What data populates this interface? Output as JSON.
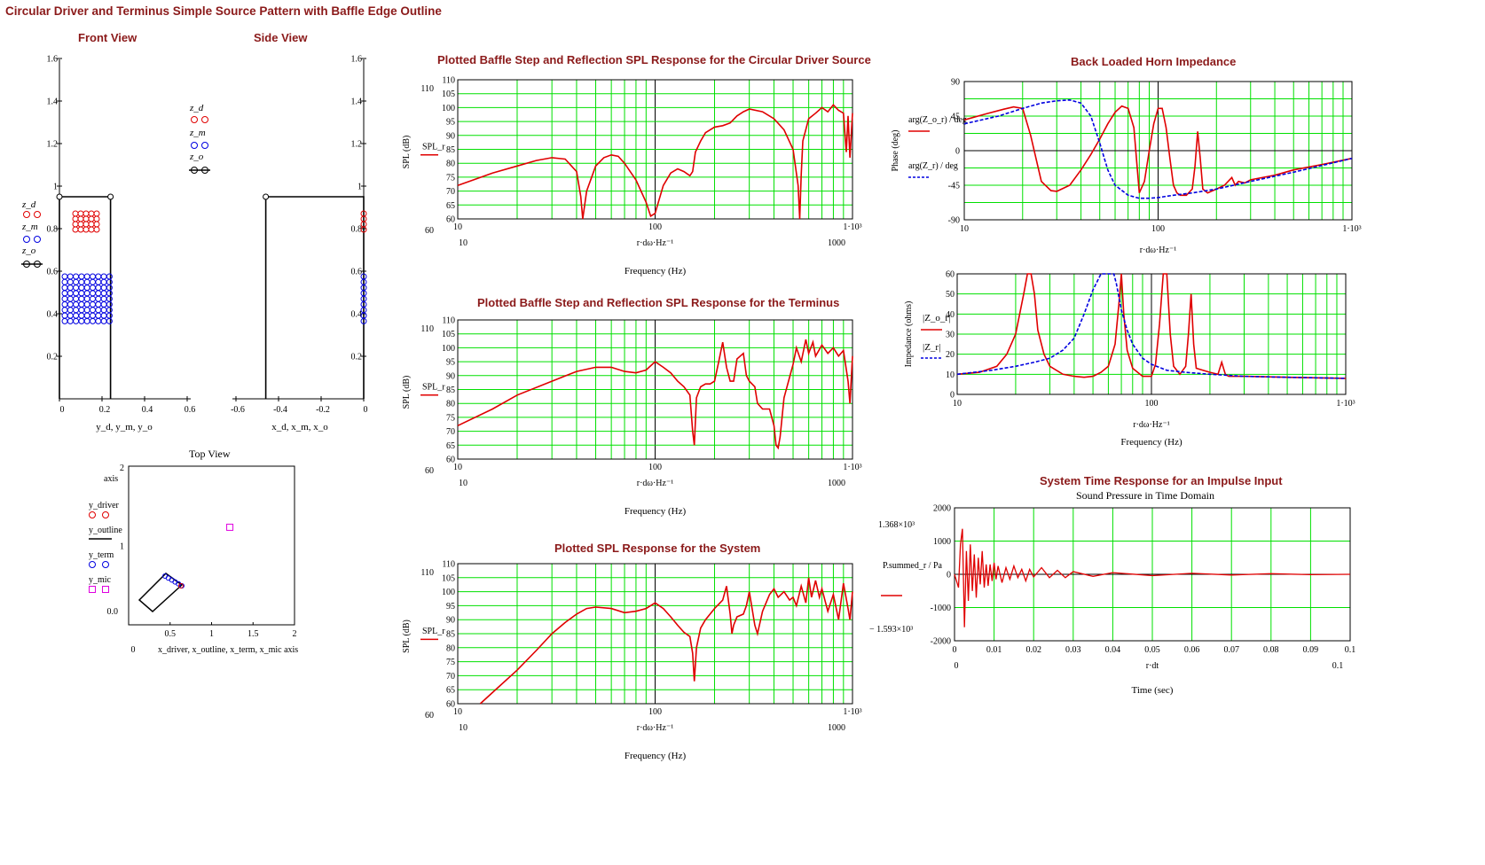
{
  "page": {
    "title": "Circular Driver and Terminus Simple Source Pattern with Baffle Edge Outline"
  },
  "colors": {
    "grid": "#00e000",
    "red": "#e00000",
    "blue": "#0000e0",
    "magenta": "#e000e0",
    "title": "#8b1a1a"
  },
  "front": {
    "title": "Front View",
    "xlabel": "y_d, y_m, y_o",
    "xticks": [
      "0",
      "0.2",
      "0.4",
      "0.6"
    ],
    "yticks": [
      "0.2",
      "0.4",
      "0.6",
      "0.8",
      "1",
      "1.2",
      "1.4",
      "1.6"
    ],
    "legend": [
      "z_d",
      "z_m",
      "z_o"
    ]
  },
  "side": {
    "title": "Side View",
    "xlabel": "x_d, x_m, x_o",
    "xticks": [
      "-0.6",
      "-0.4",
      "-0.2",
      "0"
    ],
    "yticks": [
      "0.2",
      "0.4",
      "0.6",
      "0.8",
      "1",
      "1.2",
      "1.4",
      "1.6"
    ],
    "legend": [
      "z_d",
      "z_m",
      "z_o"
    ]
  },
  "top": {
    "title": "Top View",
    "ylabel": "axis",
    "xlabel": "x_driver, x_outline, x_term, x_mic  axis",
    "xticks": [
      "0.5",
      "1",
      "1.5",
      "2"
    ],
    "x0": "0",
    "yticks": [
      "2",
      "1",
      "0.0"
    ],
    "legend": [
      "y_driver",
      "y_outline",
      "y_term",
      "y_mic"
    ]
  },
  "spl": {
    "xticks": [
      "10",
      "100",
      "1·10³"
    ],
    "xlow": "10",
    "xhigh": "1000",
    "xexpr": "r·dω·Hz⁻¹",
    "xlabel": "Frequency (Hz)",
    "ylabel": "SPL (dB)",
    "yticks": [
      "60",
      "65",
      "70",
      "75",
      "80",
      "85",
      "90",
      "95",
      "100",
      "105",
      "110"
    ],
    "ytop": "110",
    "ybot": "60",
    "legend": "SPL_r"
  },
  "chart_data": [
    {
      "type": "line",
      "title": "Plotted Baffle Step and Reflection SPL Response for the Circular Driver Source",
      "xscale": "log",
      "xlim": [
        10,
        1000
      ],
      "ylim": [
        60,
        110
      ],
      "series": [
        {
          "name": "SPL_r",
          "x": [
            10,
            12,
            15,
            20,
            25,
            30,
            35,
            40,
            42,
            43,
            45,
            50,
            55,
            60,
            65,
            70,
            80,
            90,
            95,
            100,
            110,
            120,
            130,
            140,
            150,
            155,
            160,
            170,
            180,
            200,
            220,
            240,
            260,
            280,
            300,
            350,
            400,
            450,
            500,
            530,
            540,
            550,
            560,
            600,
            650,
            700,
            750,
            800,
            850,
            900,
            930,
            950,
            970,
            1000
          ],
          "y": [
            72,
            74,
            76.5,
            79,
            81,
            82,
            81.5,
            77,
            68,
            60,
            70,
            79,
            82,
            83,
            82.5,
            80,
            74,
            66,
            61,
            62,
            72,
            76.5,
            78,
            77,
            75.5,
            77,
            84,
            88,
            91,
            93,
            93.5,
            94.5,
            97,
            98.5,
            99.5,
            98.5,
            96,
            92,
            85,
            72,
            60,
            76,
            88,
            96,
            98,
            100,
            98.5,
            101,
            99,
            98,
            84,
            97,
            82,
            98
          ]
        }
      ]
    },
    {
      "type": "line",
      "title": "Plotted Baffle Step and Reflection SPL Response for the Terminus",
      "xscale": "log",
      "xlim": [
        10,
        1000
      ],
      "ylim": [
        60,
        110
      ],
      "series": [
        {
          "name": "SPL_r",
          "x": [
            10,
            15,
            20,
            30,
            40,
            50,
            60,
            70,
            80,
            90,
            100,
            110,
            120,
            130,
            140,
            150,
            155,
            158,
            162,
            170,
            180,
            190,
            200,
            210,
            220,
            230,
            240,
            250,
            260,
            280,
            290,
            300,
            320,
            330,
            350,
            380,
            400,
            410,
            420,
            430,
            450,
            500,
            520,
            550,
            580,
            600,
            630,
            650,
            700,
            750,
            800,
            850,
            900,
            950,
            970,
            1000
          ],
          "y": [
            72,
            78,
            83,
            88,
            91.5,
            93,
            93,
            91.5,
            91,
            92,
            95,
            93,
            91,
            88,
            86,
            83,
            70,
            65,
            82,
            86,
            87,
            87,
            88,
            95,
            102,
            93,
            88,
            88,
            96,
            98,
            90,
            88,
            86,
            80,
            78,
            78,
            72,
            65,
            64,
            68,
            82,
            94,
            100,
            95,
            103,
            98,
            102,
            97,
            101,
            98,
            100,
            97,
            99,
            88,
            80,
            97
          ]
        }
      ]
    },
    {
      "type": "line",
      "title": "Plotted SPL Response for the System",
      "xscale": "log",
      "xlim": [
        10,
        1000
      ],
      "ylim": [
        60,
        110
      ],
      "series": [
        {
          "name": "SPL_r",
          "x": [
            13,
            15,
            20,
            25,
            30,
            35,
            40,
            45,
            50,
            60,
            70,
            80,
            90,
            100,
            110,
            120,
            130,
            140,
            150,
            155,
            158,
            162,
            170,
            180,
            200,
            220,
            230,
            240,
            245,
            250,
            260,
            280,
            290,
            300,
            320,
            330,
            350,
            380,
            400,
            420,
            450,
            480,
            500,
            520,
            550,
            580,
            600,
            620,
            650,
            680,
            700,
            750,
            800,
            850,
            900,
            950,
            970,
            1000
          ],
          "y": [
            60,
            64,
            72,
            79,
            85,
            89,
            92,
            94,
            94.5,
            94,
            92.5,
            93,
            94,
            96,
            94,
            91,
            88,
            85.5,
            84,
            78,
            68,
            80,
            87,
            90,
            94,
            97,
            102,
            92,
            85,
            88,
            91,
            92,
            95,
            100,
            88,
            85,
            93,
            99,
            101,
            98,
            100,
            97,
            98,
            95,
            102,
            96,
            105,
            98,
            104,
            98,
            101,
            93,
            99,
            90,
            103,
            94,
            90,
            100
          ]
        }
      ]
    },
    {
      "type": "line",
      "title": "Back Loaded Horn Impedance",
      "xscale": "log",
      "xlim": [
        10,
        1000
      ],
      "ylim": [
        -90,
        90
      ],
      "ylabel": "Phase (deg)",
      "xexpr": "r·dω·Hz⁻¹",
      "xticks": [
        "10",
        "100",
        "1·10³"
      ],
      "yticks": [
        "90",
        "45",
        "0",
        "-45",
        "-90"
      ],
      "legend": [
        "arg(Z_o_r) / deg",
        "arg(Z_r) / deg"
      ],
      "series": [
        {
          "name": "arg(Z_o_r)/deg",
          "x": [
            10,
            13,
            16,
            18,
            20,
            22,
            25,
            28,
            30,
            35,
            40,
            45,
            50,
            55,
            60,
            65,
            70,
            75,
            80,
            85,
            90,
            95,
            100,
            105,
            110,
            115,
            120,
            125,
            130,
            140,
            150,
            155,
            160,
            165,
            170,
            180,
            200,
            220,
            240,
            250,
            260,
            280,
            300,
            400,
            500,
            700,
            1000
          ],
          "y": [
            40,
            48,
            54,
            57,
            55,
            20,
            -40,
            -52,
            -53,
            -45,
            -25,
            -5,
            15,
            35,
            50,
            58,
            55,
            30,
            -55,
            -40,
            0,
            35,
            55,
            55,
            30,
            -10,
            -45,
            -55,
            -58,
            -58,
            -50,
            -20,
            25,
            -10,
            -50,
            -55,
            -50,
            -45,
            -35,
            -45,
            -40,
            -42,
            -38,
            -32,
            -25,
            -18,
            -10
          ]
        },
        {
          "name": "arg(Z_r)/deg",
          "x": [
            10,
            15,
            20,
            25,
            30,
            35,
            40,
            45,
            50,
            55,
            60,
            70,
            80,
            90,
            100,
            120,
            150,
            200,
            300,
            500,
            1000
          ],
          "y": [
            35,
            45,
            55,
            62,
            65,
            66,
            62,
            45,
            10,
            -25,
            -45,
            -58,
            -62,
            -62,
            -61,
            -58,
            -55,
            -50,
            -40,
            -28,
            -10
          ]
        }
      ]
    },
    {
      "type": "line",
      "xscale": "log",
      "xlim": [
        10,
        1000
      ],
      "ylim": [
        0,
        60
      ],
      "ylabel": "Impedance (ohms)",
      "xexpr": "r·dω·Hz⁻¹",
      "xlabel": "Frequency (Hz)",
      "xticks": [
        "10",
        "100",
        "1·10³"
      ],
      "yticks": [
        "0",
        "10",
        "20",
        "30",
        "40",
        "50",
        "60"
      ],
      "legend": [
        "|Z_o_r|",
        "|Z_r|"
      ],
      "series": [
        {
          "name": "|Z_o_r|",
          "x": [
            10,
            13,
            16,
            18,
            20,
            22,
            23,
            24,
            25,
            26,
            28,
            30,
            35,
            40,
            45,
            50,
            55,
            60,
            65,
            68,
            70,
            72,
            75,
            80,
            90,
            100,
            105,
            110,
            115,
            120,
            125,
            130,
            140,
            150,
            155,
            160,
            165,
            170,
            200,
            220,
            230,
            240,
            250,
            300,
            500,
            1000
          ],
          "y": [
            10,
            11,
            14,
            20,
            30,
            50,
            60,
            60,
            50,
            32,
            20,
            14,
            10,
            9,
            8.5,
            9,
            11,
            14,
            25,
            45,
            60,
            40,
            22,
            13,
            9,
            9,
            15,
            35,
            60,
            60,
            30,
            14,
            10,
            14,
            30,
            50,
            25,
            13,
            11,
            10,
            16,
            10,
            9,
            9,
            8.5,
            8
          ]
        },
        {
          "name": "|Z_r|",
          "x": [
            10,
            15,
            20,
            25,
            30,
            35,
            40,
            45,
            50,
            55,
            60,
            62,
            63,
            64,
            66,
            70,
            75,
            80,
            90,
            100,
            120,
            150,
            200,
            300,
            500,
            1000
          ],
          "y": [
            10,
            12,
            14,
            16,
            18,
            22,
            28,
            40,
            52,
            60,
            60,
            60,
            60,
            60,
            55,
            42,
            32,
            25,
            18,
            15,
            12,
            11,
            10,
            9,
            8.5,
            8
          ]
        }
      ]
    },
    {
      "type": "line",
      "title": "System Time Response for an Impulse Input",
      "subtitle": "Sound Pressure in Time Domain",
      "xlim": [
        0,
        0.1
      ],
      "ylim": [
        -2000,
        2000
      ],
      "xexpr": "r·dt",
      "xlabel": "Time (sec)",
      "xticks": [
        "0",
        "0.01",
        "0.02",
        "0.03",
        "0.04",
        "0.05",
        "0.06",
        "0.07",
        "0.08",
        "0.09",
        "0.1"
      ],
      "yticks": [
        "2000",
        "1000",
        "0",
        "-1000",
        "-2000"
      ],
      "ylabel": "P.summed_r / Pa",
      "ymax_label": "1.368×10³",
      "ymin_label": "− 1.593×10³",
      "xlow": "0",
      "xhigh": "0.1",
      "series": [
        {
          "name": "P.summed_r",
          "x": [
            0,
            0.001,
            0.0015,
            0.002,
            0.0025,
            0.003,
            0.0035,
            0.004,
            0.0045,
            0.005,
            0.0055,
            0.006,
            0.0065,
            0.007,
            0.0075,
            0.008,
            0.0085,
            0.009,
            0.0095,
            0.01,
            0.0105,
            0.011,
            0.012,
            0.013,
            0.014,
            0.015,
            0.016,
            0.017,
            0.018,
            0.019,
            0.02,
            0.022,
            0.024,
            0.026,
            0.028,
            0.03,
            0.035,
            0.04,
            0.05,
            0.06,
            0.07,
            0.08,
            0.09,
            0.1
          ],
          "y": [
            0,
            -400,
            900,
            1368,
            -1593,
            700,
            -800,
            900,
            -500,
            600,
            -700,
            500,
            -300,
            700,
            -400,
            300,
            -350,
            300,
            -200,
            350,
            -150,
            250,
            -250,
            200,
            -150,
            250,
            -100,
            150,
            -200,
            150,
            -80,
            200,
            -100,
            120,
            -100,
            80,
            -60,
            50,
            -40,
            30,
            -20,
            20,
            -10,
            0
          ]
        }
      ]
    }
  ]
}
